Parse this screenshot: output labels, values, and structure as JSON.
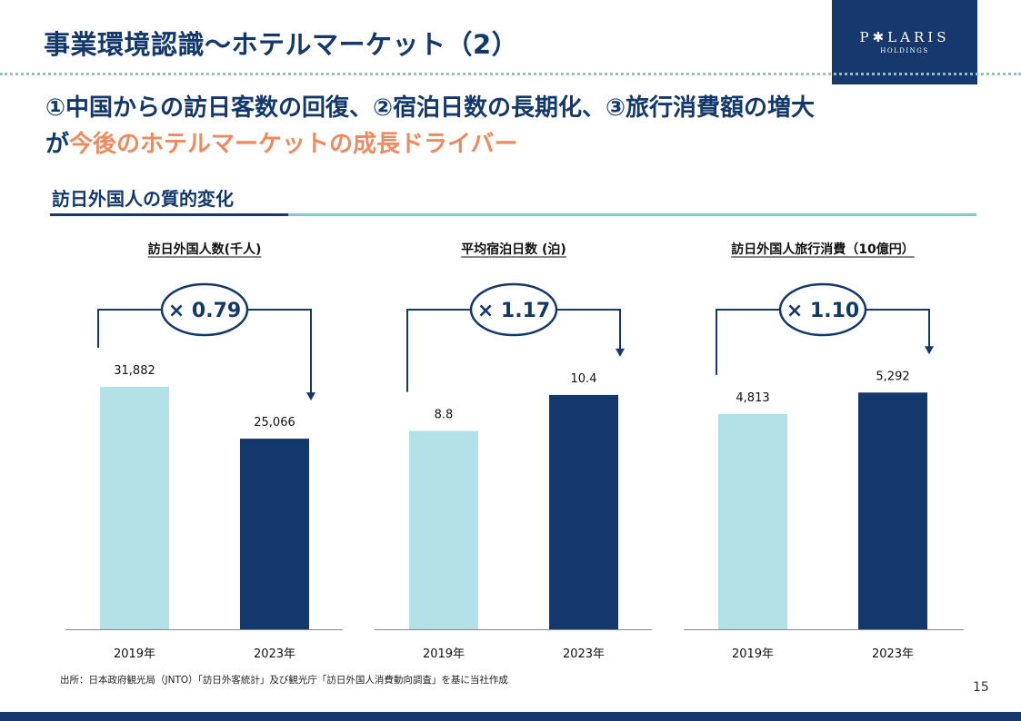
{
  "header": {
    "title": "事業環境認識～ホテルマーケット（2）",
    "logo": {
      "name": "P✱LARIS",
      "sub": "HOLDINGS"
    }
  },
  "headline": {
    "line1": "①中国からの訪日客数の回復、②宿泊日数の長期化、③旅行消費額の増大",
    "line2_prefix": "が",
    "line2_accent": "今後のホテルマーケットの成長ドライバー"
  },
  "section": {
    "title": "訪日外国人の質的変化"
  },
  "colors": {
    "bar_2019": "#b2e2e8",
    "bar_2023": "#13386b",
    "accent_orange": "#ee8a5f",
    "navy": "#13386b"
  },
  "chart_data": [
    {
      "type": "bar",
      "title": "訪日外国人数(千人)",
      "categories": [
        "2019年",
        "2023年"
      ],
      "values": [
        31882,
        25066
      ],
      "labels": [
        "31,882",
        "25,066"
      ],
      "multiplier": "× 0.79",
      "ylim": [
        0,
        40000
      ]
    },
    {
      "type": "bar",
      "title": "平均宿泊日数 (泊)",
      "categories": [
        "2019年",
        "2023年"
      ],
      "values": [
        8.8,
        10.4
      ],
      "labels": [
        "8.8",
        "10.4"
      ],
      "multiplier": "× 1.17",
      "ylim": [
        0,
        13.5
      ]
    },
    {
      "type": "bar",
      "title": "訪日外国人旅行消費（10億円）",
      "categories": [
        "2019年",
        "2023年"
      ],
      "values": [
        4813,
        5292
      ],
      "labels": [
        "4,813",
        "5,292"
      ],
      "multiplier": "× 1.10",
      "ylim": [
        0,
        6800
      ]
    }
  ],
  "footer": {
    "source": "出所：日本政府観光局（JNTO）「訪日外客統計」及び観光庁「訪日外国人消費動向調査」を基に当社作成",
    "page_number": "15"
  }
}
